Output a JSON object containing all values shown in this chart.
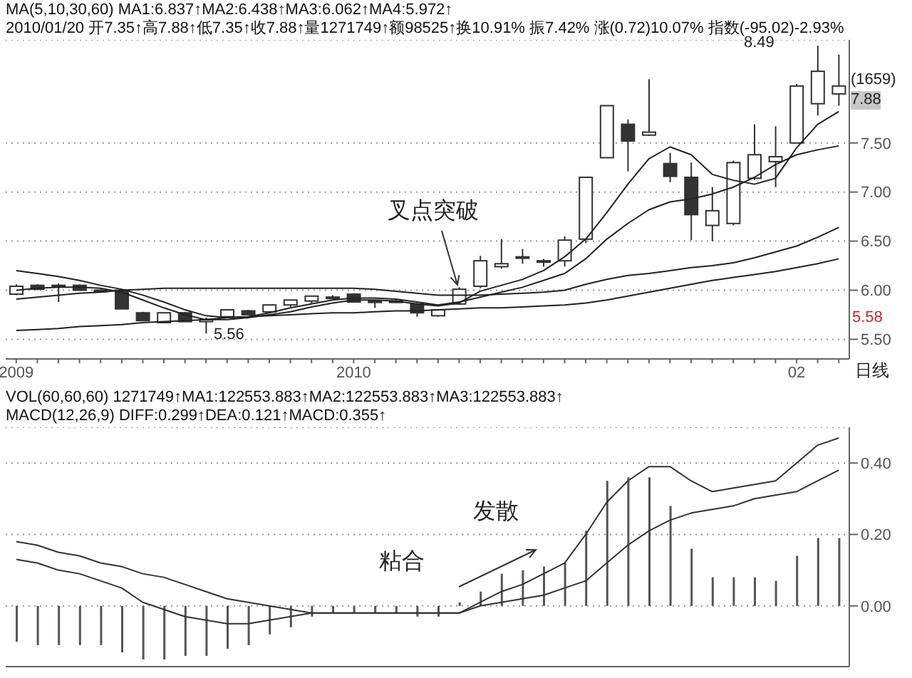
{
  "chart_data": [
    {
      "type": "candlestick",
      "color": "#333333",
      "categories": [
        "2009",
        null,
        null,
        null,
        null,
        null,
        null,
        null,
        null,
        null,
        null,
        null,
        null,
        null,
        null,
        null,
        "2010",
        null,
        null,
        null,
        null,
        null,
        null,
        null,
        null,
        null,
        null,
        null,
        null,
        null,
        null,
        null,
        null,
        null,
        null,
        null,
        null,
        "02",
        null,
        null
      ],
      "ohlc": [
        [
          5.96,
          6.06,
          5.95,
          6.04
        ],
        [
          6.05,
          6.06,
          6.0,
          6.01
        ],
        [
          6.05,
          6.07,
          5.88,
          6.05
        ],
        [
          6.05,
          6.06,
          6.0,
          6.0
        ],
        [
          6.0,
          6.01,
          5.99,
          6.0
        ],
        [
          6.0,
          6.01,
          5.81,
          5.81
        ],
        [
          5.77,
          5.78,
          5.69,
          5.69
        ],
        [
          5.67,
          5.77,
          5.67,
          5.77
        ],
        [
          5.77,
          5.78,
          5.68,
          5.68
        ],
        [
          5.68,
          5.72,
          5.56,
          5.7
        ],
        [
          5.73,
          5.8,
          5.73,
          5.8
        ],
        [
          5.79,
          5.8,
          5.75,
          5.75
        ],
        [
          5.78,
          5.85,
          5.78,
          5.85
        ],
        [
          5.85,
          5.9,
          5.83,
          5.9
        ],
        [
          5.89,
          5.94,
          5.86,
          5.94
        ],
        [
          5.93,
          5.95,
          5.92,
          5.93
        ],
        [
          5.96,
          5.97,
          5.88,
          5.88
        ],
        [
          5.89,
          5.9,
          5.82,
          5.89
        ],
        [
          5.89,
          5.91,
          5.87,
          5.89
        ],
        [
          5.86,
          5.87,
          5.73,
          5.77
        ],
        [
          5.74,
          5.8,
          5.73,
          5.8
        ],
        [
          5.86,
          6.03,
          5.85,
          6.01
        ],
        [
          6.04,
          6.35,
          6.02,
          6.3
        ],
        [
          6.24,
          6.52,
          6.22,
          6.27
        ],
        [
          6.34,
          6.42,
          6.27,
          6.34
        ],
        [
          6.3,
          6.32,
          6.24,
          6.3
        ],
        [
          6.3,
          6.55,
          6.24,
          6.51
        ],
        [
          6.52,
          7.15,
          6.48,
          7.15
        ],
        [
          7.35,
          7.88,
          7.35,
          7.88
        ],
        [
          7.69,
          7.74,
          7.21,
          7.52
        ],
        [
          7.58,
          8.15,
          7.57,
          7.61
        ],
        [
          7.29,
          7.4,
          7.1,
          7.16
        ],
        [
          7.15,
          7.3,
          6.51,
          6.77
        ],
        [
          6.66,
          7.05,
          6.5,
          6.81
        ],
        [
          6.68,
          7.32,
          6.66,
          7.3
        ],
        [
          7.14,
          7.69,
          7.12,
          7.38
        ],
        [
          7.31,
          7.67,
          7.05,
          7.36
        ],
        [
          7.5,
          8.1,
          7.5,
          8.08
        ],
        [
          7.9,
          8.49,
          7.78,
          8.23
        ],
        [
          8.0,
          8.4,
          7.88,
          8.08
        ]
      ],
      "series": [
        {
          "type": "line",
          "color": "#222222",
          "values": [
            6.0,
            6.02,
            6.03,
            6.03,
            6.02,
            5.98,
            5.9,
            5.82,
            5.75,
            5.7,
            5.7,
            5.72,
            5.75,
            5.78,
            5.83,
            5.87,
            5.9,
            5.9,
            5.89,
            5.86,
            5.84,
            5.87,
            5.99,
            6.05,
            6.11,
            6.2,
            6.34,
            6.52,
            6.79,
            7.08,
            7.34,
            7.46,
            7.38,
            7.18,
            7.12,
            7.08,
            7.14,
            7.45,
            7.69,
            7.82
          ]
        },
        {
          "type": "line",
          "color": "#222222",
          "values": [
            6.2,
            6.17,
            6.14,
            6.1,
            6.05,
            6.01,
            5.95,
            5.88,
            5.8,
            5.74,
            5.72,
            5.73,
            5.77,
            5.82,
            5.86,
            5.9,
            5.92,
            5.92,
            5.91,
            5.88,
            5.85,
            5.88,
            5.93,
            5.98,
            6.03,
            6.1,
            6.17,
            6.32,
            6.52,
            6.68,
            6.82,
            6.9,
            6.93,
            6.98,
            7.05,
            7.15,
            7.28,
            7.38,
            7.43,
            7.47
          ]
        },
        {
          "type": "line",
          "color": "#222222",
          "values": [
            5.91,
            5.93,
            5.95,
            5.97,
            5.98,
            6.0,
            6.01,
            6.02,
            6.02,
            6.02,
            6.02,
            6.02,
            6.02,
            6.02,
            6.02,
            6.02,
            6.02,
            6.01,
            5.99,
            5.97,
            5.95,
            5.95,
            5.95,
            5.96,
            5.97,
            5.98,
            6.0,
            6.06,
            6.11,
            6.15,
            6.17,
            6.2,
            6.23,
            6.25,
            6.28,
            6.33,
            6.39,
            6.45,
            6.54,
            6.64
          ]
        },
        {
          "type": "line",
          "color": "#222222",
          "values": [
            5.59,
            5.6,
            5.61,
            5.63,
            5.64,
            5.65,
            5.67,
            5.68,
            5.69,
            5.7,
            5.72,
            5.73,
            5.74,
            5.75,
            5.76,
            5.77,
            5.77,
            5.78,
            5.79,
            5.79,
            5.8,
            5.81,
            5.82,
            5.82,
            5.83,
            5.84,
            5.85,
            5.87,
            5.9,
            5.94,
            5.98,
            6.02,
            6.06,
            6.1,
            6.13,
            6.16,
            6.19,
            6.23,
            6.27,
            6.32
          ]
        }
      ],
      "ylim": [
        5.3,
        8.55
      ],
      "yticks": [
        {
          "value": 5.5,
          "label": "5.50"
        },
        {
          "value": 6.0,
          "label": "6.00"
        },
        {
          "value": 6.5,
          "label": "6.50"
        },
        {
          "value": 7.0,
          "label": "7.00"
        },
        {
          "value": 7.5,
          "label": "7.50"
        }
      ],
      "grid": "y",
      "annotations": [
        "MA(5,10,30,60) MA1:6.837↑MA2:6.438↑MA3:6.062↑MA4:5.972↑",
        "2010/01/20 开7.35↑高7.88↑低7.35↑收7.88↑量1271749↑额98525↑换10.91% 振7.42% 涨(0.72)10.07% 指数(-95.02)-2.93%",
        {
          "text": "叉点突破",
          "y": 6.03
        },
        "8.49",
        "5.56",
        "(1659)",
        "7.88",
        "5.58",
        "日线"
      ]
    },
    {
      "type": "bar",
      "categories": [
        null,
        null,
        null,
        null,
        null,
        null,
        null,
        null,
        null,
        null,
        null,
        null,
        null,
        null,
        null,
        null,
        null,
        null,
        null,
        null,
        null,
        null,
        null,
        null,
        null,
        null,
        null,
        null,
        null,
        null,
        null,
        null,
        null,
        null,
        null,
        null,
        null,
        null,
        null,
        null
      ],
      "series": [
        {
          "type": "bar",
          "color": "#555555",
          "values": [
            -0.1,
            -0.11,
            -0.11,
            -0.11,
            -0.11,
            -0.13,
            -0.15,
            -0.15,
            -0.14,
            -0.14,
            -0.12,
            -0.11,
            -0.08,
            -0.06,
            -0.03,
            -0.02,
            -0.02,
            -0.02,
            -0.02,
            -0.03,
            -0.03,
            0.01,
            0.04,
            0.09,
            0.1,
            0.11,
            0.12,
            0.21,
            0.35,
            0.36,
            0.36,
            0.28,
            0.16,
            0.08,
            0.08,
            0.08,
            0.07,
            0.14,
            0.19,
            0.19
          ]
        },
        {
          "type": "line",
          "color": "#333333",
          "values": [
            0.13,
            0.12,
            0.1,
            0.09,
            0.07,
            0.05,
            0.01,
            -0.01,
            -0.03,
            -0.04,
            -0.05,
            -0.05,
            -0.04,
            -0.03,
            -0.02,
            -0.02,
            -0.02,
            -0.02,
            -0.02,
            -0.02,
            -0.02,
            -0.02,
            0.01,
            0.04,
            0.06,
            0.09,
            0.12,
            0.2,
            0.29,
            0.35,
            0.39,
            0.39,
            0.35,
            0.32,
            0.33,
            0.34,
            0.35,
            0.4,
            0.45,
            0.47
          ]
        },
        {
          "type": "line",
          "color": "#333333",
          "values": [
            0.18,
            0.17,
            0.15,
            0.14,
            0.12,
            0.11,
            0.09,
            0.08,
            0.06,
            0.04,
            0.02,
            0.01,
            0.0,
            -0.01,
            -0.02,
            -0.02,
            -0.02,
            -0.02,
            -0.02,
            -0.02,
            -0.02,
            -0.02,
            0.0,
            0.01,
            0.02,
            0.03,
            0.05,
            0.07,
            0.12,
            0.17,
            0.21,
            0.24,
            0.26,
            0.27,
            0.28,
            0.3,
            0.31,
            0.32,
            0.35,
            0.38
          ]
        }
      ],
      "ylim": [
        -0.17,
        0.5
      ],
      "yticks": [
        {
          "value": 0,
          "label": "0.00"
        },
        {
          "value": 0.2,
          "label": "0.20"
        },
        {
          "value": 0.4,
          "label": "0.40"
        }
      ],
      "grid": "y",
      "tick_labels": "y",
      "annotations": [
        "VOL(60,60,60) 1271749↑MA1:122553.883↑MA2:122553.883↑MA3:122553.883↑",
        "MACD(12,26,9) DIFF:0.299↑DEA:0.121↑MACD:0.355↑",
        "发散",
        "粘合"
      ]
    }
  ]
}
